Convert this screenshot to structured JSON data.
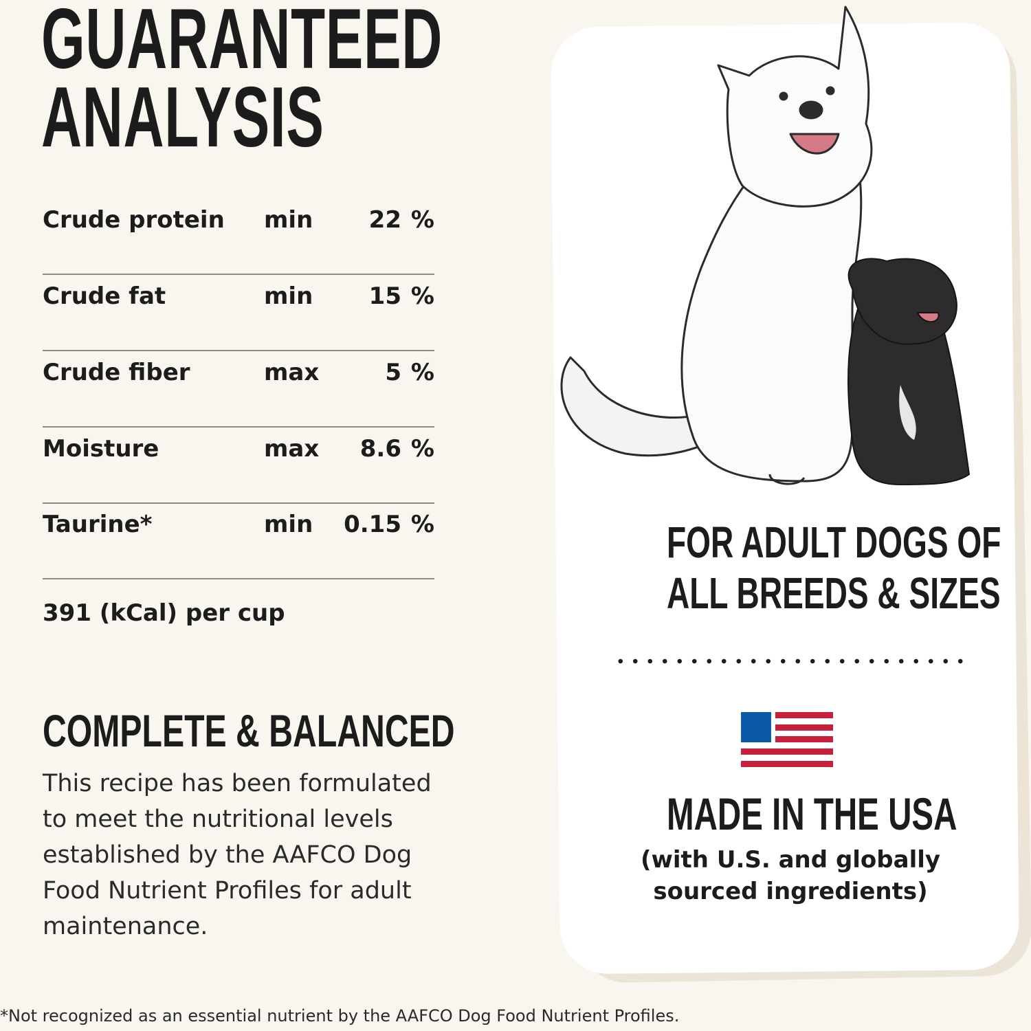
{
  "title": {
    "line1": "GUARANTEED",
    "line2": "ANALYSIS"
  },
  "analysis": [
    {
      "nutrient": "Crude protein",
      "qualifier": "min",
      "value": "22",
      "unit": "%"
    },
    {
      "nutrient": "Crude fat",
      "qualifier": "min",
      "value": "15",
      "unit": "%"
    },
    {
      "nutrient": "Crude fiber",
      "qualifier": "max",
      "value": "5",
      "unit": "%"
    },
    {
      "nutrient": "Moisture",
      "qualifier": "max",
      "value": "8.6",
      "unit": "%"
    },
    {
      "nutrient": "Taurine*",
      "qualifier": "min",
      "value": "0.15",
      "unit": "%"
    }
  ],
  "calories": "391 (kCal) per cup",
  "complete_balanced": {
    "title": "COMPLETE & BALANCED",
    "body": "This recipe has been formulated to meet the nutritional levels established by the AAFCO Dog Food Nutrient Profiles for adult maintenance."
  },
  "card": {
    "audience_line1": "FOR ADULT DOGS OF",
    "audience_line2": "ALL BREEDS & SIZES",
    "made_in": "MADE IN THE USA",
    "sourcing_line1": "(with U.S. and globally",
    "sourcing_line2": "sourced ingredients)",
    "flag_colors": {
      "blue": "#0a5aa8",
      "red": "#c8203a"
    }
  },
  "footnote": "*Not recognized as an essential nutrient by the AAFCO Dog Food Nutrient Profiles."
}
